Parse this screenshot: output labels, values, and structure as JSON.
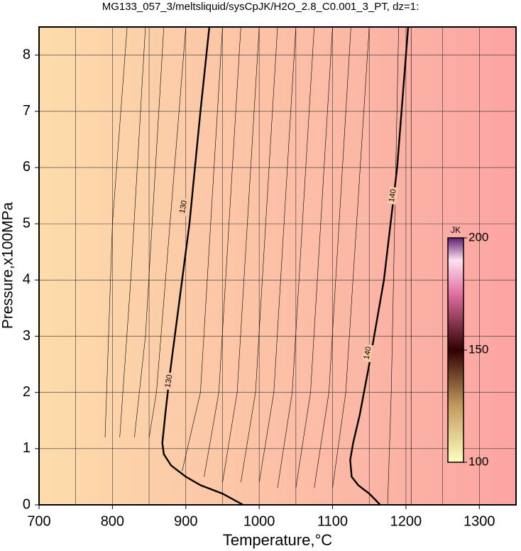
{
  "chart_data": {
    "type": "contour",
    "title": "MG133_057_3/meltsliquid/sysCpJK/H2O_2.8_C0.001_3_PT, dz=1:",
    "x_label": "Temperature,°C",
    "y_label": "Pressure,x100MPa",
    "xlim": [
      700,
      1350
    ],
    "ylim": [
      0,
      8.5
    ],
    "xticks": [
      700,
      800,
      900,
      1000,
      1100,
      1200,
      1300
    ],
    "yticks": [
      0,
      1,
      2,
      3,
      4,
      5,
      6,
      7,
      8
    ],
    "x_gridlines": [
      750,
      800,
      850,
      900,
      950,
      1000,
      1050,
      1100,
      1150,
      1200,
      1250,
      1300
    ],
    "grid": true,
    "series": [
      {
        "level": 130,
        "color": "#000000",
        "x": [
          978,
          950,
          920,
          900,
          880,
          870,
          868,
          872,
          878,
          890,
          905,
          920,
          932
        ],
        "y": [
          0,
          0.2,
          0.35,
          0.5,
          0.7,
          0.9,
          1.1,
          1.6,
          2.3,
          3.5,
          5,
          7,
          8.5
        ]
      },
      {
        "level": 140,
        "color": "#000000",
        "x": [
          1165,
          1150,
          1135,
          1126,
          1124,
          1128,
          1137,
          1150,
          1170,
          1188,
          1200,
          1203
        ],
        "y": [
          0,
          0.2,
          0.35,
          0.5,
          0.8,
          1.1,
          1.6,
          2.5,
          4,
          6,
          8,
          8.5
        ]
      },
      {
        "color": "#000000",
        "x": [
          1207,
          1207
        ],
        "y": [
          0,
          8.5
        ]
      },
      {
        "color": "#000000",
        "x": [
          895,
          920,
          950
        ],
        "y": [
          0.6,
          2,
          8.5
        ]
      },
      {
        "color": "#000000",
        "x": [
          925,
          945,
          975
        ],
        "y": [
          0.5,
          2,
          8.5
        ]
      },
      {
        "color": "#000000",
        "x": [
          950,
          970,
          1000
        ],
        "y": [
          0.4,
          2,
          8.5
        ]
      },
      {
        "color": "#000000",
        "x": [
          975,
          995,
          1025
        ],
        "y": [
          0.4,
          2,
          8.5
        ]
      },
      {
        "color": "#000000",
        "x": [
          1000,
          1020,
          1050
        ],
        "y": [
          0.4,
          2,
          8.5
        ]
      },
      {
        "color": "#000000",
        "x": [
          1025,
          1045,
          1075
        ],
        "y": [
          0.3,
          2,
          8.5
        ]
      },
      {
        "color": "#000000",
        "x": [
          1050,
          1070,
          1100
        ],
        "y": [
          0.3,
          2,
          8.5
        ]
      },
      {
        "color": "#000000",
        "x": [
          1075,
          1095,
          1125
        ],
        "y": [
          0.3,
          2,
          8.5
        ]
      },
      {
        "color": "#000000",
        "x": [
          1100,
          1118,
          1150
        ],
        "y": [
          0.3,
          2,
          8.5
        ]
      },
      {
        "color": "#000000",
        "x": [
          1175,
          1180,
          1190
        ],
        "y": [
          0,
          2,
          8.5
        ]
      },
      {
        "color": "#000000",
        "x": [
          850,
          860,
          900
        ],
        "y": [
          1.2,
          2,
          8.5
        ]
      },
      {
        "color": "#000000",
        "x": [
          830,
          845,
          870
        ],
        "y": [
          1.2,
          3,
          8.5
        ]
      },
      {
        "color": "#000000",
        "x": [
          810,
          825,
          845
        ],
        "y": [
          1.2,
          4,
          8.5
        ]
      },
      {
        "color": "#000000",
        "x": [
          790,
          800,
          820
        ],
        "y": [
          1.2,
          5,
          8.5
        ]
      }
    ],
    "contour_labels": [
      {
        "series": 0,
        "x": 897,
        "y": 5.3
      },
      {
        "series": 0,
        "x": 877,
        "y": 2.2
      },
      {
        "series": 1,
        "x": 1182,
        "y": 5.5
      },
      {
        "series": 1,
        "x": 1148,
        "y": 2.7
      }
    ],
    "colorbar": {
      "label": "JK",
      "lim": [
        100,
        200
      ],
      "ticks": [
        100,
        150,
        200
      ]
    }
  }
}
